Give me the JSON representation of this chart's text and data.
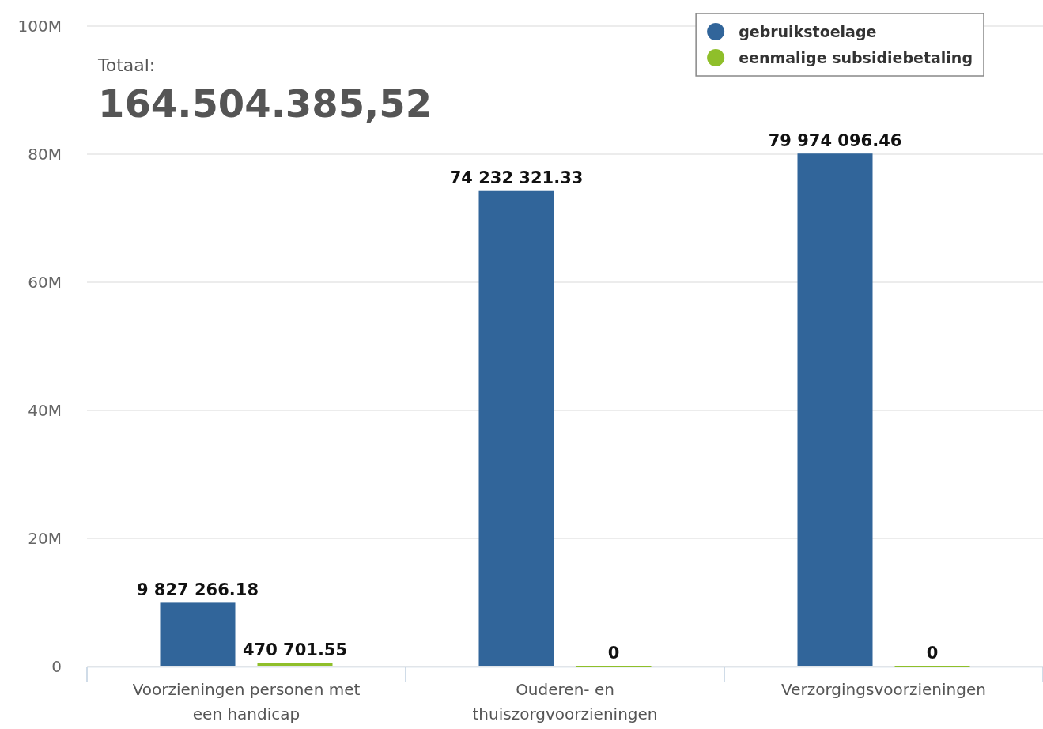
{
  "chart_data": {
    "type": "bar",
    "categories": [
      "Voorzieningen personen met een handicap",
      "Ouderen- en thuiszorgvoorzieningen",
      "Verzorgingsvoorzieningen"
    ],
    "series": [
      {
        "name": "gebruikstoelage",
        "color": "#31659a",
        "values": [
          9827266.18,
          74232321.33,
          79974096.46
        ],
        "value_labels": [
          "9 827 266.18",
          "74 232 321.33",
          "79 974 096.46"
        ]
      },
      {
        "name": "eenmalige subsidiebetaling",
        "color": "#8fbf2a",
        "values": [
          470701.55,
          0,
          0
        ],
        "value_labels": [
          "470 701.55",
          "0",
          "0"
        ]
      }
    ],
    "ylim": [
      0,
      100000000
    ],
    "yticks": [
      {
        "value": 0,
        "label": "0"
      },
      {
        "value": 20000000,
        "label": "20M"
      },
      {
        "value": 40000000,
        "label": "40M"
      },
      {
        "value": 60000000,
        "label": "60M"
      },
      {
        "value": 80000000,
        "label": "80M"
      },
      {
        "value": 100000000,
        "label": "100M"
      }
    ],
    "grid": "y",
    "legend": "top right",
    "annotations": [
      "Totaal:",
      "164.504.385,52"
    ]
  }
}
